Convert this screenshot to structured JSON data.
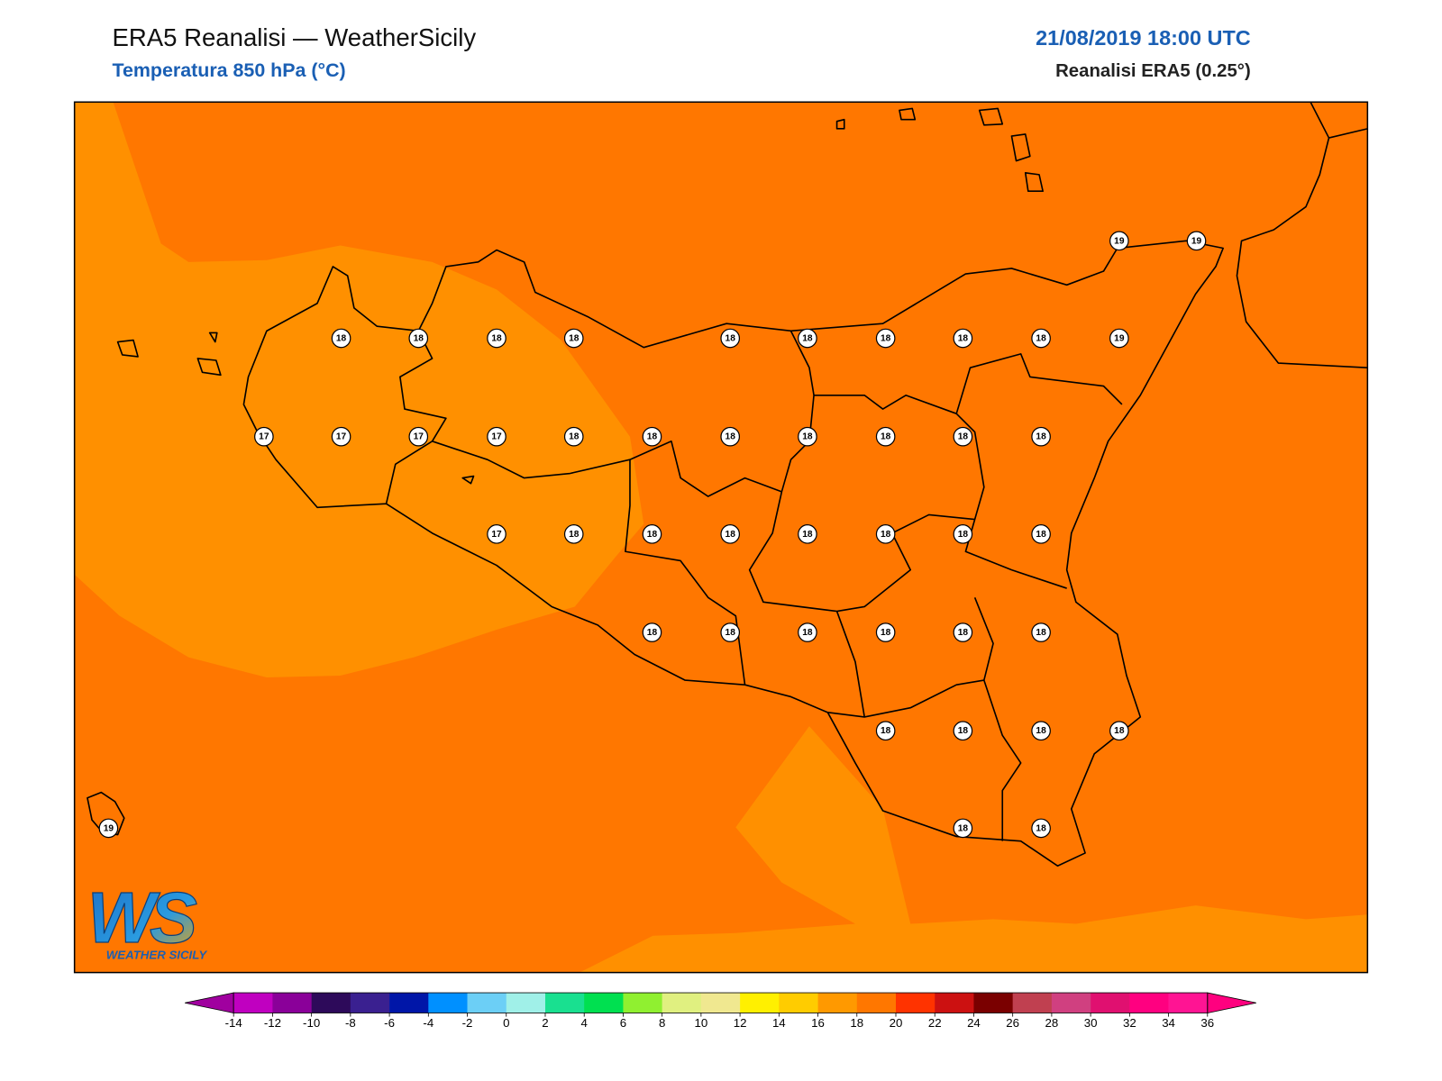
{
  "header": {
    "title": "ERA5 Reanalisi — WeatherSicily",
    "subtitle": "Temperatura 850 hPa (°C)",
    "datetime": "21/08/2019 18:00 UTC",
    "source": "Reanalisi ERA5 (0.25°)"
  },
  "stations": [
    19,
    19,
    18,
    18,
    18,
    18,
    18,
    18,
    18,
    18,
    18,
    19,
    17,
    17,
    17,
    17,
    18,
    18,
    18,
    18,
    18,
    18,
    18,
    17,
    18,
    18,
    18,
    18,
    18,
    18,
    18,
    18,
    18,
    18,
    18,
    18,
    18,
    18,
    18,
    18,
    18,
    19,
    18,
    18
  ],
  "colorbar": {
    "ticks": [
      -14,
      -12,
      -10,
      -8,
      -6,
      -4,
      -2,
      0,
      2,
      4,
      6,
      8,
      10,
      12,
      14,
      16,
      18,
      20,
      22,
      24,
      26,
      28,
      30,
      32,
      34,
      36
    ],
    "colors": [
      "#c000c0",
      "#8a0099",
      "#2d0a5a",
      "#3a2090",
      "#0016a8",
      "#0090ff",
      "#6ccff6",
      "#a0f0e8",
      "#19e090",
      "#00e050",
      "#90f030",
      "#e0f080",
      "#f0e890",
      "#fff000",
      "#ffcc00",
      "#ff9900",
      "#ff7700",
      "#ff3300",
      "#cc1111",
      "#7a0000",
      "#c04050",
      "#d04080",
      "#e01070",
      "#ff0080",
      "#ff1493"
    ],
    "under_color": "#a0009f",
    "over_color": "#ff007f"
  },
  "logo": {
    "mark": "WS",
    "name": "WEATHER SICILY"
  }
}
